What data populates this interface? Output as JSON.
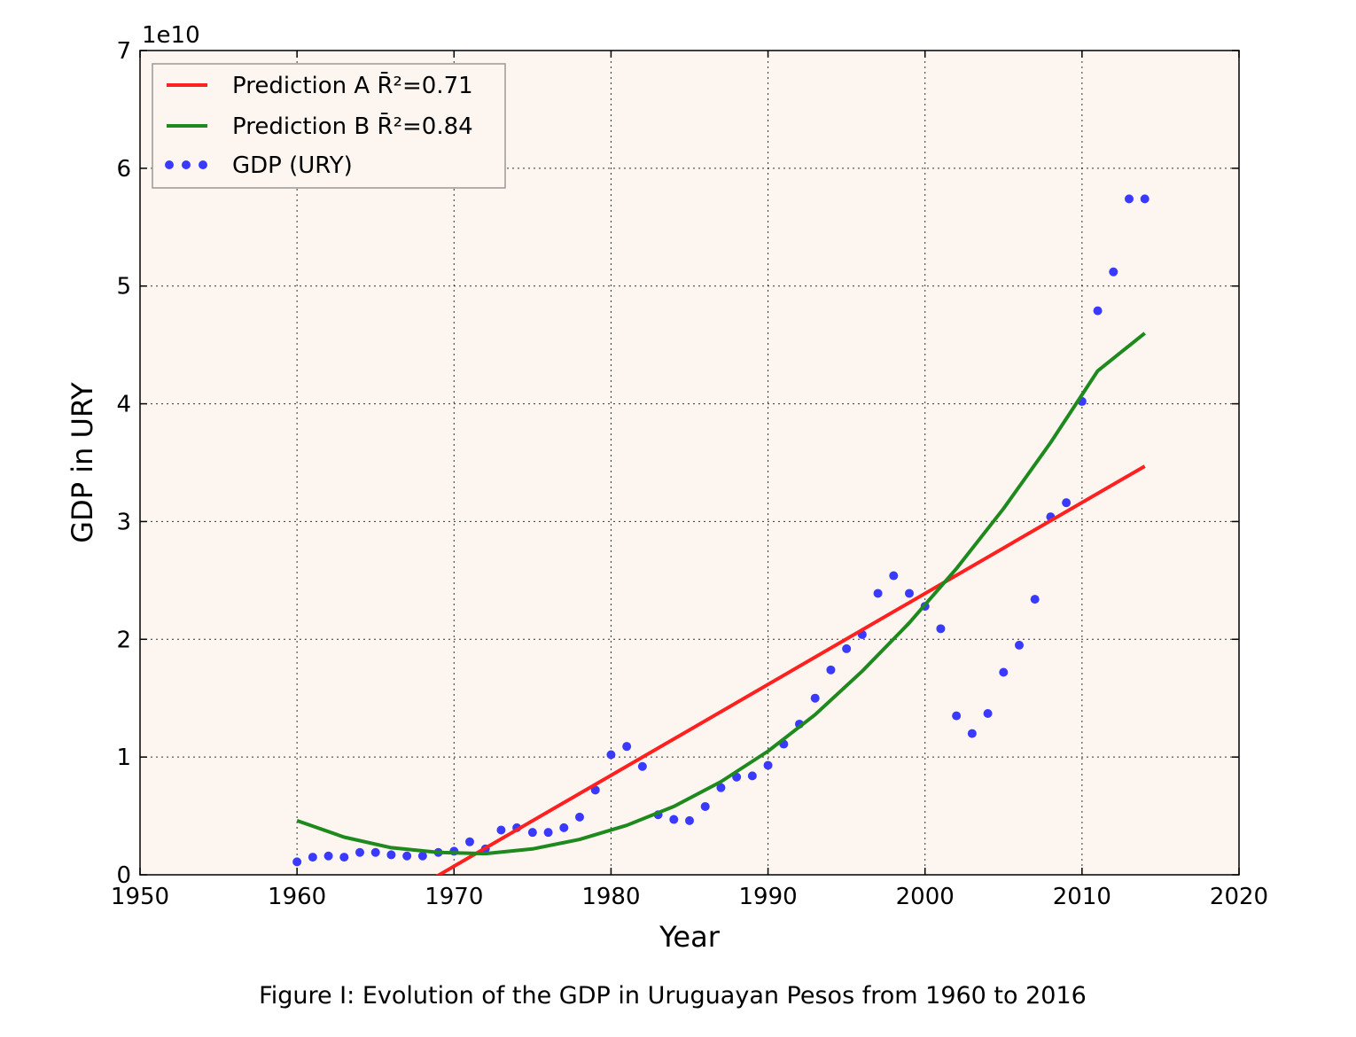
{
  "caption": "Figure I: Evolution of the GDP in Uruguayan Pesos from 1960 to 2016",
  "chart_data": {
    "type": "scatter",
    "title": "",
    "xlabel": "Year",
    "ylabel": "GDP in URY",
    "y_offset_label": "1e10",
    "xlim": [
      1950,
      2020
    ],
    "ylim": [
      0,
      70000000000
    ],
    "x_ticks": [
      1950,
      1960,
      1970,
      1980,
      1990,
      2000,
      2010,
      2020
    ],
    "x_tick_labels": [
      "1950",
      "1960",
      "1970",
      "1980",
      "1990",
      "2000",
      "2010",
      "2020"
    ],
    "y_ticks": [
      0,
      10000000000,
      20000000000,
      30000000000,
      40000000000,
      50000000000,
      60000000000,
      70000000000
    ],
    "y_tick_labels": [
      "0",
      "1",
      "2",
      "3",
      "4",
      "5",
      "6",
      "7"
    ],
    "grid": true,
    "legend_position": "top-left",
    "plot_background": "#fdf6f0",
    "legend": [
      {
        "label_prefix": "Prediction A ",
        "label_r2": "R̄²=0.71",
        "color": "#ff2020",
        "marker": "line"
      },
      {
        "label_prefix": "Prediction B ",
        "label_r2": "R̄²=0.84",
        "color": "#1e8a1e",
        "marker": "line"
      },
      {
        "label_prefix": "GDP (URY)",
        "label_r2": "",
        "color": "#3a3aff",
        "marker": "dots"
      }
    ],
    "series": [
      {
        "name": "GDP (URY)",
        "kind": "scatter",
        "color": "#3a3aff",
        "x": [
          1960,
          1961,
          1962,
          1963,
          1964,
          1965,
          1966,
          1967,
          1968,
          1969,
          1970,
          1971,
          1972,
          1973,
          1974,
          1975,
          1976,
          1977,
          1978,
          1979,
          1980,
          1981,
          1982,
          1983,
          1984,
          1985,
          1986,
          1987,
          1988,
          1989,
          1990,
          1991,
          1992,
          1993,
          1994,
          1995,
          1996,
          1997,
          1998,
          1999,
          2000,
          2001,
          2002,
          2003,
          2004,
          2005,
          2006,
          2007,
          2008,
          2009,
          2010,
          2011,
          2012,
          2013,
          2014
        ],
        "y": [
          1100000000,
          1500000000,
          1600000000,
          1500000000,
          1900000000,
          1900000000,
          1700000000,
          1600000000,
          1600000000,
          1900000000,
          2000000000,
          2800000000,
          2200000000,
          3800000000,
          4000000000,
          3600000000,
          3600000000,
          4000000000,
          4900000000,
          7200000000,
          10200000000,
          10900000000,
          9200000000,
          5100000000,
          4700000000,
          4600000000,
          5800000000,
          7400000000,
          8300000000,
          8400000000,
          9300000000,
          11100000000,
          12800000000,
          15000000000,
          17400000000,
          19200000000,
          20400000000,
          23900000000,
          25400000000,
          23900000000,
          22800000000,
          20900000000,
          13500000000,
          12000000000,
          13700000000,
          17200000000,
          19500000000,
          23400000000,
          30400000000,
          31600000000,
          40200000000,
          47900000000,
          51200000000,
          57400000000,
          57400000000
        ]
      },
      {
        "name": "Prediction A",
        "kind": "line",
        "color": "#ff2020",
        "x": [
          1960,
          2014
        ],
        "y": [
          -7000000000,
          34700000000
        ]
      },
      {
        "name": "Prediction B",
        "kind": "line",
        "color": "#1e8a1e",
        "x": [
          1960,
          1963,
          1966,
          1969,
          1972,
          1975,
          1978,
          1981,
          1984,
          1987,
          1990,
          1993,
          1996,
          1999,
          2002,
          2005,
          2008,
          2011,
          2014
        ],
        "y": [
          4600000000,
          3200000000,
          2300000000,
          1900000000,
          1800000000,
          2200000000,
          3000000000,
          4200000000,
          5800000000,
          7900000000,
          10500000000,
          13600000000,
          17300000000,
          21400000000,
          26000000000,
          31100000000,
          36700000000,
          42800000000,
          46000000000
        ]
      }
    ]
  }
}
